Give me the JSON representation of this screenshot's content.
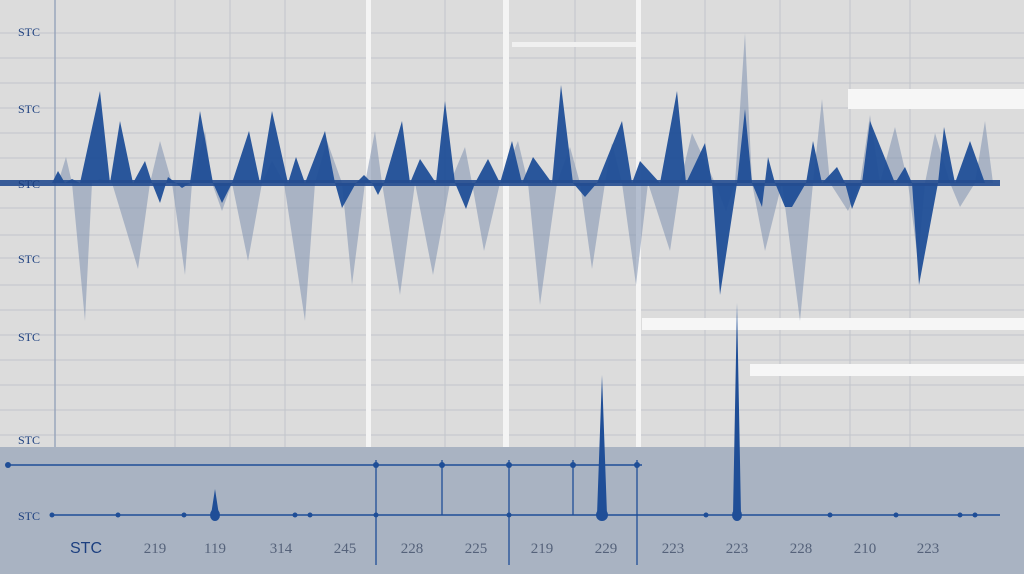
{
  "chart_data": {
    "type": "area",
    "y_tick_labels": [
      "STC",
      "STC",
      "STC",
      "STC",
      "STC",
      "STC",
      "STC"
    ],
    "x_tick_labels": [
      "STC",
      "219",
      "119",
      "314",
      "245",
      "228",
      "225",
      "219",
      "229",
      "223",
      "223",
      "228",
      "210",
      "223"
    ],
    "series": [
      {
        "x": [
          52,
          58,
          65,
          72,
          80,
          100,
          110,
          120,
          133,
          145,
          152,
          160,
          168,
          176,
          182,
          190,
          200,
          213,
          222,
          232,
          249,
          260,
          272,
          288,
          296,
          305,
          325,
          335,
          342,
          356,
          364,
          372,
          378,
          384,
          402,
          410,
          420,
          436,
          445,
          455,
          466,
          475,
          488,
          500,
          512,
          522,
          533,
          552,
          561,
          573,
          585,
          597,
          622,
          632,
          640,
          660,
          677,
          686,
          705,
          712,
          720,
          737,
          745,
          752,
          762,
          768,
          775,
          785,
          792,
          806,
          813,
          822,
          837,
          845,
          852,
          862,
          870,
          895,
          905,
          912,
          919,
          938,
          944,
          955,
          970,
          985
        ],
        "y": [
          0,
          0.12,
          0,
          0.04,
          0,
          0.92,
          0,
          0.62,
          0,
          0.22,
          0,
          -0.2,
          0.06,
          0,
          -0.05,
          0,
          0.72,
          0,
          -0.2,
          0,
          0.52,
          0,
          0.72,
          0,
          0.26,
          0,
          0.52,
          0,
          -0.25,
          0,
          0.08,
          0,
          -0.12,
          0,
          0.62,
          0,
          0.24,
          0,
          0.82,
          0,
          -0.26,
          0,
          0.24,
          0,
          0.42,
          0,
          0.26,
          0,
          0.98,
          0,
          -0.14,
          0,
          0.62,
          0,
          0.22,
          0,
          0.92,
          0,
          0.4,
          0,
          -1.12,
          0,
          0.74,
          0,
          -0.24,
          0.26,
          0,
          -0.24,
          -0.24,
          0,
          0.42,
          0,
          0.16,
          0,
          -0.26,
          0,
          0.62,
          0,
          0.16,
          0,
          -1.02,
          0,
          0.56,
          0,
          0.42,
          0
        ]
      },
      {
        "x": [
          58,
          66,
          72,
          85,
          92,
          100,
          112,
          138,
          150,
          160,
          172,
          185,
          192,
          205,
          212,
          222,
          232,
          248,
          262,
          272,
          284,
          305,
          315,
          327,
          342,
          352,
          365,
          375,
          382,
          400,
          415,
          433,
          450,
          465,
          472,
          484,
          500,
          518,
          528,
          540,
          557,
          570,
          580,
          592,
          605,
          612,
          622,
          636,
          648,
          670,
          680,
          692,
          715,
          726,
          735,
          745,
          752,
          765,
          782,
          800,
          813,
          822,
          830,
          848,
          860,
          870,
          880,
          895,
          908,
          918,
          925,
          935,
          950,
          960,
          975,
          985,
          993
        ],
        "y": [
          0,
          0.26,
          0,
          -1.38,
          0,
          0.04,
          0,
          -0.86,
          0,
          0.42,
          0,
          -0.92,
          0,
          0.52,
          0,
          -0.28,
          0,
          -0.78,
          0,
          0.22,
          0,
          -1.38,
          0,
          0.42,
          0,
          -1.02,
          0,
          0.52,
          0,
          -1.12,
          0,
          -0.92,
          0,
          0.36,
          0,
          -0.68,
          0,
          0.42,
          0,
          -1.22,
          0,
          0.36,
          0,
          -0.86,
          0,
          0.4,
          0,
          -1.02,
          0,
          -0.68,
          0,
          0.5,
          0,
          -0.28,
          0,
          1.5,
          0,
          -0.68,
          0,
          -1.38,
          0,
          0.84,
          0,
          -0.28,
          0,
          0.68,
          0,
          0.56,
          0,
          -0.78,
          0,
          0.5,
          0,
          -0.24,
          0,
          0.62,
          0
        ]
      },
      {
        "x": [
          585,
          597,
          602,
          607,
          612,
          724,
          733,
          737,
          741,
          750,
          200,
          211,
          215,
          219,
          230
        ],
        "y": [
          0,
          0,
          -1.4,
          0,
          0,
          0,
          0,
          -2.12,
          0,
          0,
          0,
          0,
          -0.26,
          0,
          0
        ]
      }
    ],
    "grid": true
  }
}
